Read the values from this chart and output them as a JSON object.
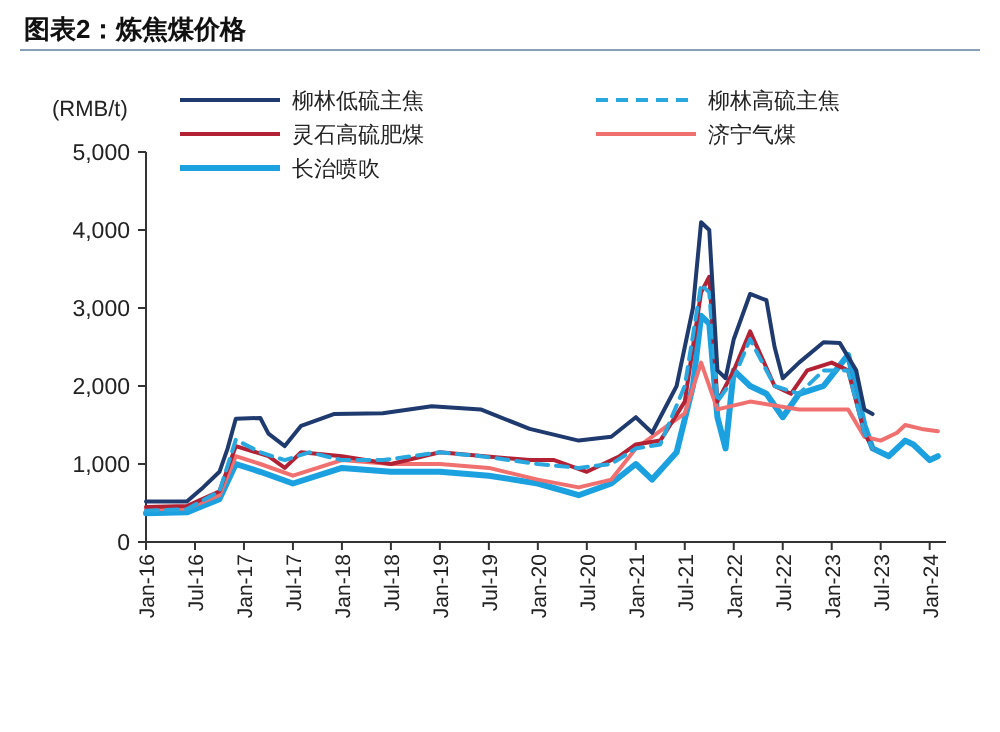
{
  "chart_data": {
    "type": "line",
    "title": "图表2：炼焦煤价格",
    "ylabel": "(RMB/t)",
    "xlim": [
      "2016-01",
      "2024-03"
    ],
    "xticks": [
      {
        "value": "2016-01",
        "label": "Jan-16"
      },
      {
        "value": "2016-07",
        "label": "Jul-16"
      },
      {
        "value": "2017-01",
        "label": "Jan-17"
      },
      {
        "value": "2017-07",
        "label": "Jul-17"
      },
      {
        "value": "2018-01",
        "label": "Jan-18"
      },
      {
        "value": "2018-07",
        "label": "Jul-18"
      },
      {
        "value": "2019-01",
        "label": "Jan-19"
      },
      {
        "value": "2019-07",
        "label": "Jul-19"
      },
      {
        "value": "2020-01",
        "label": "Jan-20"
      },
      {
        "value": "2020-07",
        "label": "Jul-20"
      },
      {
        "value": "2021-01",
        "label": "Jan-21"
      },
      {
        "value": "2021-07",
        "label": "Jul-21"
      },
      {
        "value": "2022-01",
        "label": "Jan-22"
      },
      {
        "value": "2022-07",
        "label": "Jul-22"
      },
      {
        "value": "2023-01",
        "label": "Jan-23"
      },
      {
        "value": "2023-07",
        "label": "Jul-23"
      },
      {
        "value": "2024-01",
        "label": "Jan-24"
      }
    ],
    "ylim": [
      0,
      5000
    ],
    "yticks": [
      {
        "value": 0,
        "label": "0"
      },
      {
        "value": 1000,
        "label": "1,000"
      },
      {
        "value": 2000,
        "label": "2,000"
      },
      {
        "value": 3000,
        "label": "3,000"
      },
      {
        "value": 4000,
        "label": "4,000"
      },
      {
        "value": 5000,
        "label": "5,000"
      }
    ],
    "grid": false,
    "legend": "top",
    "marker": "none",
    "series": [
      {
        "name": "柳林低硫主焦",
        "color": "#1f3a6e",
        "line_style": "solid",
        "x": [
          "2016-01",
          "2016-06",
          "2016-08",
          "2016-10",
          "2016-11",
          "2016-12",
          "2017-03",
          "2017-04",
          "2017-06",
          "2017-08",
          "2017-12",
          "2018-06",
          "2018-12",
          "2019-06",
          "2019-12",
          "2020-06",
          "2020-10",
          "2021-01",
          "2021-03",
          "2021-06",
          "2021-08",
          "2021-09",
          "2021-10",
          "2021-11",
          "2021-12",
          "2022-01",
          "2022-03",
          "2022-05",
          "2022-06",
          "2022-07",
          "2022-09",
          "2022-12",
          "2023-02",
          "2023-04",
          "2023-05",
          "2023-06"
        ],
        "values": [
          520,
          520,
          700,
          900,
          1200,
          1580,
          1590,
          1390,
          1230,
          1490,
          1640,
          1650,
          1740,
          1700,
          1450,
          1300,
          1350,
          1600,
          1400,
          2000,
          3000,
          4100,
          4000,
          2200,
          2100,
          2600,
          3180,
          3100,
          2500,
          2100,
          2300,
          2560,
          2550,
          2200,
          1700,
          1640
        ]
      },
      {
        "name": "柳林高硫主焦",
        "color": "#29a8e0",
        "line_style": "dashed",
        "x": [
          "2016-01",
          "2016-06",
          "2016-10",
          "2016-12",
          "2017-03",
          "2017-06",
          "2017-09",
          "2018-01",
          "2018-06",
          "2019-01",
          "2019-06",
          "2020-01",
          "2020-06",
          "2020-10",
          "2021-01",
          "2021-04",
          "2021-07",
          "2021-09",
          "2021-10",
          "2021-11",
          "2022-01",
          "2022-03",
          "2022-06",
          "2022-09",
          "2022-12",
          "2023-03",
          "2023-05",
          "2023-06"
        ],
        "values": [
          400,
          420,
          650,
          1310,
          1150,
          1050,
          1150,
          1050,
          1050,
          1150,
          1100,
          1000,
          950,
          1000,
          1200,
          1250,
          2000,
          3300,
          3200,
          1800,
          2100,
          2600,
          2000,
          1900,
          2200,
          2200,
          1400,
          1200
        ]
      },
      {
        "name": "灵石高硫肥煤",
        "color": "#b22234",
        "line_style": "solid",
        "x": [
          "2016-01",
          "2016-06",
          "2016-10",
          "2016-12",
          "2017-04",
          "2017-06",
          "2017-08",
          "2018-01",
          "2018-07",
          "2019-01",
          "2019-12",
          "2020-03",
          "2020-07",
          "2020-11",
          "2021-01",
          "2021-04",
          "2021-07",
          "2021-09",
          "2021-10",
          "2021-11",
          "2022-01",
          "2022-03",
          "2022-06",
          "2022-08",
          "2022-10",
          "2023-01",
          "2023-03",
          "2023-05",
          "2023-06"
        ],
        "values": [
          450,
          460,
          650,
          1230,
          1100,
          950,
          1150,
          1100,
          1000,
          1150,
          1050,
          1050,
          900,
          1100,
          1250,
          1300,
          1800,
          3200,
          3400,
          1800,
          2200,
          2700,
          2000,
          1900,
          2200,
          2300,
          2200,
          1400,
          1200
        ]
      },
      {
        "name": "济宁气煤",
        "color": "#f07070",
        "line_style": "solid",
        "x": [
          "2016-01",
          "2016-06",
          "2016-10",
          "2016-12",
          "2017-03",
          "2017-07",
          "2018-01",
          "2018-07",
          "2019-01",
          "2019-07",
          "2020-01",
          "2020-06",
          "2020-10",
          "2021-01",
          "2021-07",
          "2021-09",
          "2021-11",
          "2022-03",
          "2022-09",
          "2023-03",
          "2023-05",
          "2023-07",
          "2023-09",
          "2023-10",
          "2023-12",
          "2024-02"
        ],
        "values": [
          420,
          430,
          600,
          1100,
          1000,
          850,
          1050,
          1000,
          1000,
          950,
          800,
          700,
          800,
          1200,
          1650,
          2300,
          1700,
          1800,
          1700,
          1700,
          1350,
          1300,
          1400,
          1500,
          1450,
          1420
        ]
      },
      {
        "name": "长治喷吹",
        "color": "#1ba0e0",
        "line_style": "solid",
        "x": [
          "2016-01",
          "2016-06",
          "2016-10",
          "2016-12",
          "2017-03",
          "2017-07",
          "2018-01",
          "2018-07",
          "2019-01",
          "2019-07",
          "2020-01",
          "2020-06",
          "2020-10",
          "2021-01",
          "2021-03",
          "2021-06",
          "2021-08",
          "2021-09",
          "2021-10",
          "2021-11",
          "2021-12",
          "2022-01",
          "2022-03",
          "2022-05",
          "2022-07",
          "2022-09",
          "2022-12",
          "2023-03",
          "2023-05",
          "2023-06",
          "2023-08",
          "2023-10",
          "2023-11",
          "2024-01",
          "2024-02"
        ],
        "values": [
          370,
          380,
          550,
          1000,
          900,
          750,
          950,
          900,
          900,
          850,
          750,
          600,
          750,
          1000,
          800,
          1150,
          2000,
          2900,
          2800,
          1600,
          1200,
          2200,
          2000,
          1900,
          1600,
          1900,
          2000,
          2400,
          1500,
          1200,
          1100,
          1300,
          1250,
          1050,
          1100
        ]
      }
    ]
  }
}
